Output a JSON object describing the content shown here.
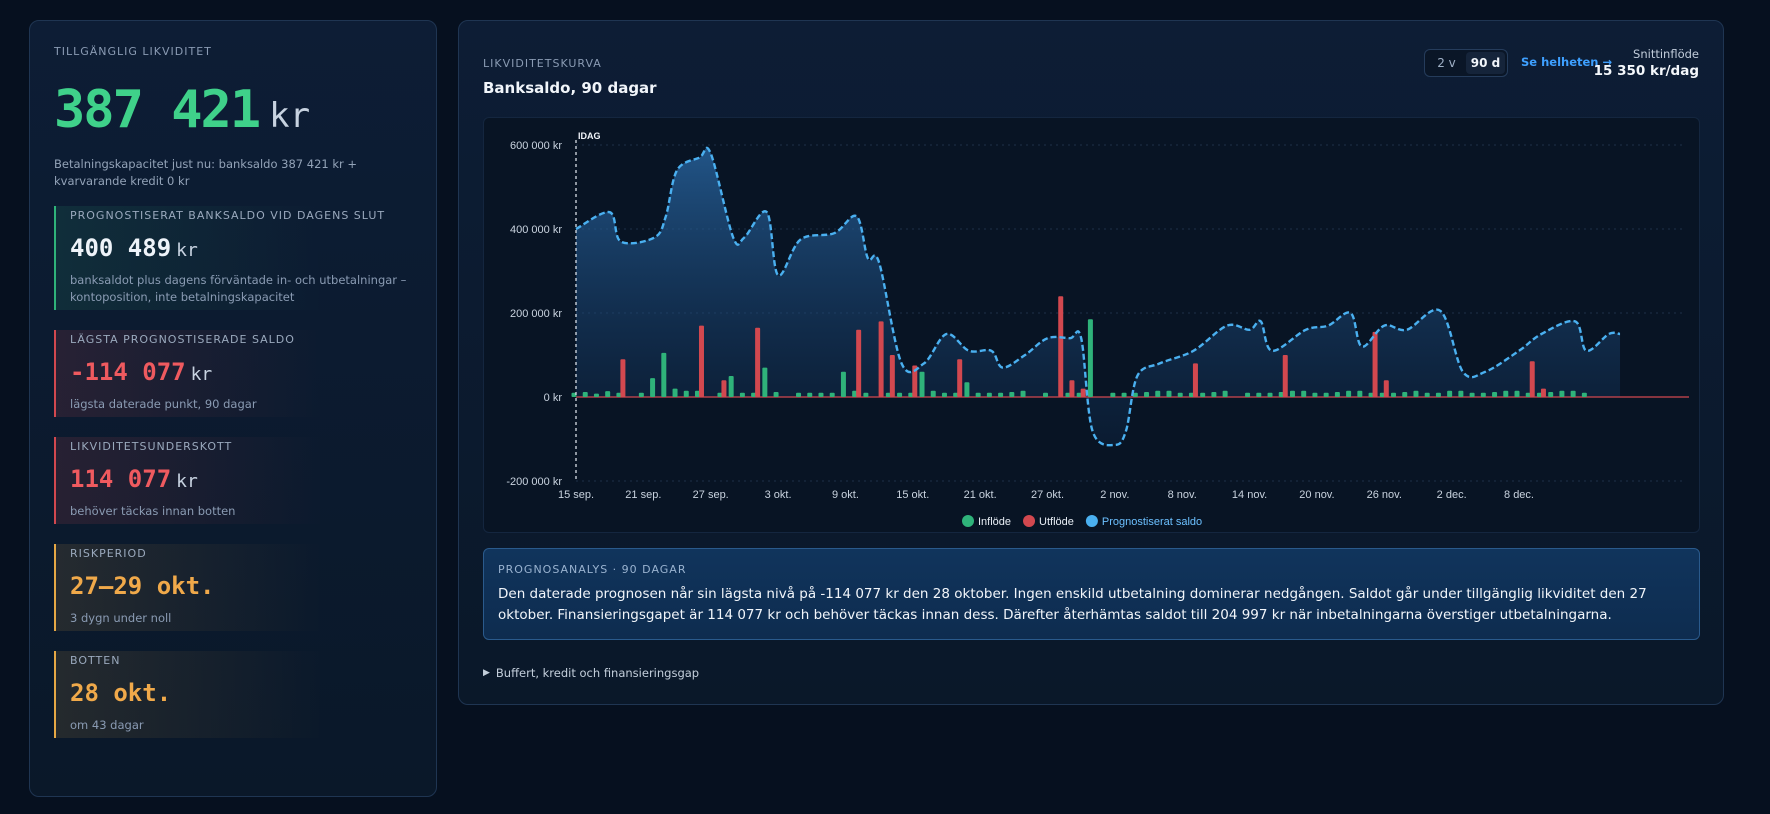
{
  "left": {
    "label": "TILLGÄNGLIG LIKVIDITET",
    "amount": "387 421",
    "unit": "kr",
    "subtitle": "Betalningskapacitet just nu: banksaldo 387 421 kr + kvarvarande kredit 0 kr",
    "metrics": [
      {
        "label": "PROGNOSTISERAT BANKSALDO VID DAGENS SLUT",
        "value": "400 489",
        "unit": "kr",
        "desc1": "banksaldot plus dagens förväntade in- och utbetalningar –",
        "desc2": "kontoposition, inte betalningskapacitet",
        "color": "#2fb37a"
      },
      {
        "label": "LÄGSTA PROGNOSTISERADE SALDO",
        "value": "-114 077",
        "unit": "kr",
        "desc1": "lägsta daterade punkt, 90 dagar",
        "color": "#d2484f"
      },
      {
        "label": "LIKVIDITETSUNDERSKOTT",
        "value": "114 077",
        "unit": "kr",
        "desc1": "behöver täckas innan botten",
        "color": "#d2484f"
      },
      {
        "label": "RISKPERIOD",
        "value": "27–29 okt.",
        "unit": "",
        "desc1": "3 dygn under noll",
        "color": "#e6a845"
      },
      {
        "label": "BOTTEN",
        "value": "28 okt.",
        "unit": "",
        "desc1": "om 43 dagar",
        "color": "#e6a845"
      }
    ]
  },
  "chart_panel": {
    "label": "LIKVIDITETSKURVA",
    "title": "Banksaldo, 90 dagar",
    "toggle": [
      "2 v",
      "90 d"
    ],
    "active_toggle": "90 d",
    "see_all": "Se helheten →",
    "avg_label": "Snittinflöde",
    "avg_value": "15 350 kr/dag"
  },
  "chart_data": {
    "type": "bar",
    "title": "Banksaldo, 90 dagar",
    "xlabel": "",
    "ylabel": "",
    "ylim": [
      -200000,
      600000
    ],
    "y_ticks": [
      -200000,
      0,
      200000,
      400000,
      600000
    ],
    "y_tick_labels": [
      "-200 000 kr",
      "0 kr",
      "200 000 kr",
      "400 000 kr",
      "600 000 kr"
    ],
    "x_tick_labels": [
      "15 sep.",
      "21 sep.",
      "27 sep.",
      "3 okt.",
      "9 okt.",
      "15 okt.",
      "21 okt.",
      "27 okt.",
      "2 nov.",
      "8 nov.",
      "14 nov.",
      "20 nov.",
      "26 nov.",
      "2 dec.",
      "8 dec."
    ],
    "today_label": "IDAG",
    "grid": true,
    "legend_position": "bottom",
    "legend": [
      {
        "name": "Inflöde",
        "color": "#2fb37a"
      },
      {
        "name": "Utflöde",
        "color": "#d2484f"
      },
      {
        "name": "Prognostiserat saldo",
        "color": "#4ab0f0"
      }
    ],
    "day_count": 90,
    "balance_points": [
      [
        0,
        400000
      ],
      [
        3,
        440000
      ],
      [
        4,
        370000
      ],
      [
        7,
        380000
      ],
      [
        8,
        430000
      ],
      [
        9,
        540000
      ],
      [
        11,
        570000
      ],
      [
        12,
        580000
      ],
      [
        14,
        380000
      ],
      [
        15,
        380000
      ],
      [
        17,
        440000
      ],
      [
        18,
        290000
      ],
      [
        20,
        375000
      ],
      [
        23,
        390000
      ],
      [
        25,
        430000
      ],
      [
        26,
        330000
      ],
      [
        27,
        320000
      ],
      [
        29,
        80000
      ],
      [
        31,
        80000
      ],
      [
        33,
        150000
      ],
      [
        35,
        110000
      ],
      [
        37,
        110000
      ],
      [
        38,
        70000
      ],
      [
        40,
        100000
      ],
      [
        42,
        140000
      ],
      [
        44,
        140000
      ],
      [
        45,
        140000
      ],
      [
        46,
        -80000
      ],
      [
        48,
        -114077
      ],
      [
        49,
        -80000
      ],
      [
        50,
        50000
      ],
      [
        52,
        80000
      ],
      [
        55,
        110000
      ],
      [
        58,
        170000
      ],
      [
        60,
        160000
      ],
      [
        61,
        180000
      ],
      [
        62,
        110000
      ],
      [
        65,
        160000
      ],
      [
        67,
        170000
      ],
      [
        69,
        200000
      ],
      [
        70,
        120000
      ],
      [
        72,
        170000
      ],
      [
        74,
        160000
      ],
      [
        77,
        204997
      ],
      [
        79,
        60000
      ],
      [
        81,
        60000
      ],
      [
        84,
        110000
      ],
      [
        86,
        150000
      ],
      [
        89,
        180000
      ],
      [
        90,
        110000
      ],
      [
        92,
        150000
      ],
      [
        93,
        150000
      ]
    ],
    "inflows": [
      [
        0,
        10000
      ],
      [
        1,
        12000
      ],
      [
        2,
        8000
      ],
      [
        3,
        14000
      ],
      [
        4,
        10000
      ],
      [
        6,
        10000
      ],
      [
        7,
        45000
      ],
      [
        8,
        105000
      ],
      [
        9,
        20000
      ],
      [
        10,
        15000
      ],
      [
        11,
        15000
      ],
      [
        13,
        10000
      ],
      [
        14,
        50000
      ],
      [
        15,
        10000
      ],
      [
        16,
        10000
      ],
      [
        17,
        70000
      ],
      [
        18,
        12000
      ],
      [
        20,
        10000
      ],
      [
        21,
        10000
      ],
      [
        22,
        10000
      ],
      [
        23,
        10000
      ],
      [
        24,
        60000
      ],
      [
        25,
        15000
      ],
      [
        26,
        10000
      ],
      [
        28,
        10000
      ],
      [
        29,
        10000
      ],
      [
        30,
        10000
      ],
      [
        31,
        60000
      ],
      [
        32,
        15000
      ],
      [
        33,
        10000
      ],
      [
        34,
        10000
      ],
      [
        35,
        35000
      ],
      [
        36,
        10000
      ],
      [
        37,
        10000
      ],
      [
        38,
        10000
      ],
      [
        39,
        12000
      ],
      [
        40,
        15000
      ],
      [
        42,
        10000
      ],
      [
        44,
        10000
      ],
      [
        45,
        10000
      ],
      [
        46,
        185000
      ],
      [
        48,
        10000
      ],
      [
        49,
        10000
      ],
      [
        50,
        10000
      ],
      [
        51,
        12000
      ],
      [
        52,
        15000
      ],
      [
        53,
        15000
      ],
      [
        54,
        10000
      ],
      [
        55,
        10000
      ],
      [
        56,
        10000
      ],
      [
        57,
        12000
      ],
      [
        58,
        15000
      ],
      [
        60,
        10000
      ],
      [
        61,
        10000
      ],
      [
        62,
        10000
      ],
      [
        63,
        12000
      ],
      [
        64,
        15000
      ],
      [
        65,
        15000
      ],
      [
        66,
        10000
      ],
      [
        67,
        10000
      ],
      [
        68,
        12000
      ],
      [
        69,
        15000
      ],
      [
        70,
        15000
      ],
      [
        71,
        10000
      ],
      [
        72,
        10000
      ],
      [
        73,
        10000
      ],
      [
        74,
        12000
      ],
      [
        75,
        15000
      ],
      [
        76,
        10000
      ],
      [
        77,
        10000
      ],
      [
        78,
        15000
      ],
      [
        79,
        15000
      ],
      [
        80,
        10000
      ],
      [
        81,
        10000
      ],
      [
        82,
        12000
      ],
      [
        83,
        15000
      ],
      [
        84,
        15000
      ],
      [
        85,
        10000
      ],
      [
        86,
        10000
      ],
      [
        87,
        12000
      ],
      [
        88,
        15000
      ],
      [
        89,
        15000
      ],
      [
        90,
        10000
      ]
    ],
    "outflows": [
      [
        4,
        90000
      ],
      [
        11,
        170000
      ],
      [
        13,
        40000
      ],
      [
        16,
        165000
      ],
      [
        25,
        160000
      ],
      [
        27,
        180000
      ],
      [
        28,
        100000
      ],
      [
        30,
        75000
      ],
      [
        34,
        90000
      ],
      [
        43,
        240000
      ],
      [
        44,
        40000
      ],
      [
        45,
        20000
      ],
      [
        55,
        80000
      ],
      [
        63,
        100000
      ],
      [
        71,
        155000
      ],
      [
        72,
        40000
      ],
      [
        85,
        85000
      ],
      [
        86,
        20000
      ]
    ]
  },
  "analysis": {
    "label": "PROGNOSANALYS · 90 DAGAR",
    "text": "Den daterade prognosen når sin lägsta nivå på -114 077 kr den 28 oktober. Ingen enskild utbetalning dominerar nedgången. Saldot går under tillgänglig likviditet den 27 oktober. Finansieringsgapet är 114 077 kr och behöver täckas innan dess. Därefter återhämtas saldot till 204 997 kr när inbetalningarna överstiger utbetalningarna."
  },
  "details_label": "Buffert, kredit och finansieringsgap"
}
